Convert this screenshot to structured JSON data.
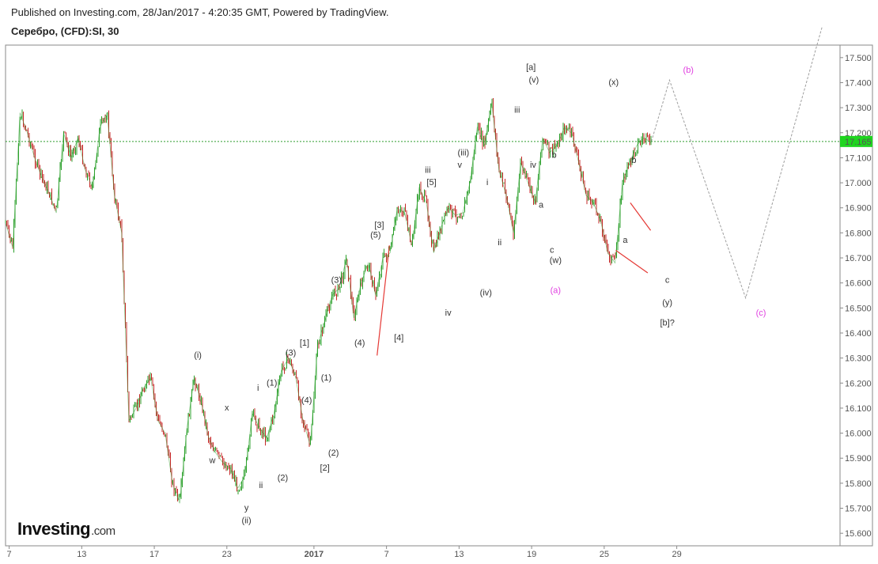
{
  "header": {
    "published": "Published on Investing.com, 28/Jan/2017 - 4:20:35 GMT, Powered by TradingView.",
    "symbol": "Серебро, (CFD):SI, 30"
  },
  "logo": {
    "main": "Investing",
    "domain": ".com"
  },
  "colors": {
    "up": "#2ca02c",
    "down": "#c62828",
    "price_line": "#2e9e2e",
    "price_label_bg": "#1fd51f",
    "projection": "#9e9e9e",
    "wave_label": "#333333",
    "wave_label_alt": "#e040e0",
    "trendline": "#e53935"
  },
  "chart_data": {
    "type": "line",
    "title": "Серебро, (CFD):SI, 30",
    "ylim": [
      15.55,
      17.55
    ],
    "xlim": [
      0,
      115
    ],
    "y_ticks": [
      "17.500",
      "17.400",
      "17.300",
      "17.200",
      "17.100",
      "17.000",
      "16.900",
      "16.800",
      "16.700",
      "16.600",
      "16.500",
      "16.400",
      "16.300",
      "16.200",
      "16.100",
      "16.000",
      "15.900",
      "15.800",
      "15.700",
      "15.600"
    ],
    "x_ticks": [
      {
        "label": "7",
        "x": 0.5
      },
      {
        "label": "13",
        "x": 10.5
      },
      {
        "label": "17",
        "x": 20.5
      },
      {
        "label": "23",
        "x": 30.5
      },
      {
        "label": "2017",
        "x": 42.5,
        "bold": true
      },
      {
        "label": "7",
        "x": 52.5
      },
      {
        "label": "13",
        "x": 62.5
      },
      {
        "label": "19",
        "x": 72.5
      },
      {
        "label": "25",
        "x": 82.5
      },
      {
        "label": "29",
        "x": 92.5
      }
    ],
    "current_price": 17.165,
    "current_price_label": "17.165",
    "series": [
      {
        "name": "",
        "x": [
          0,
          1,
          2,
          3,
          4,
          5,
          6,
          7,
          8,
          9,
          10,
          11,
          12,
          13,
          14,
          15,
          16,
          17,
          18,
          19,
          20,
          21,
          22,
          23,
          24,
          25,
          26,
          27,
          28,
          29,
          30,
          31,
          32,
          33,
          34,
          35,
          36,
          37,
          38,
          39,
          40,
          41,
          42,
          43,
          44,
          45,
          46,
          47,
          48,
          49,
          50,
          51,
          52,
          53,
          54,
          55,
          56,
          57,
          58,
          59,
          60,
          61,
          62,
          63,
          64,
          65,
          66,
          67,
          68,
          69,
          70,
          71,
          72,
          73,
          74,
          75,
          76,
          77,
          78,
          79,
          80,
          81,
          82,
          83,
          84,
          85,
          86,
          87,
          88,
          89
        ],
        "y": [
          16.84,
          16.74,
          17.28,
          17.2,
          17.1,
          17.02,
          16.96,
          16.88,
          17.2,
          17.1,
          17.18,
          17.05,
          16.98,
          17.22,
          17.28,
          16.95,
          16.8,
          16.05,
          16.1,
          16.18,
          16.22,
          16.05,
          16.0,
          15.8,
          15.72,
          16.02,
          16.22,
          16.12,
          15.98,
          15.92,
          15.88,
          15.86,
          15.78,
          15.83,
          16.08,
          16.02,
          15.98,
          16.08,
          16.25,
          16.3,
          16.22,
          16.05,
          15.95,
          16.35,
          16.45,
          16.55,
          16.58,
          16.7,
          16.46,
          16.6,
          16.68,
          16.55,
          16.7,
          16.72,
          16.9,
          16.88,
          16.75,
          16.98,
          16.92,
          16.72,
          16.82,
          16.9,
          16.87,
          16.88,
          17.0,
          17.22,
          17.15,
          17.32,
          17.05,
          16.95,
          16.8,
          17.08,
          17.0,
          16.92,
          17.18,
          17.12,
          17.15,
          17.22,
          17.2,
          17.08,
          16.95,
          16.92,
          16.85,
          16.72,
          16.68,
          17.0,
          17.08,
          17.15,
          17.18,
          17.16
        ],
        "color": "#2ca02c"
      },
      {
        "name": "",
        "x": [
          89,
          91.5,
          102,
          112.5
        ],
        "y": [
          17.165,
          17.41,
          16.54,
          17.62
        ],
        "style": "dashed",
        "color": "#9e9e9e"
      }
    ],
    "trendlines": [
      {
        "x": [
          51.2,
          52.9
        ],
        "y": [
          16.31,
          16.75
        ]
      },
      {
        "x": [
          86.1,
          88.9
        ],
        "y": [
          16.92,
          16.81
        ]
      },
      {
        "x": [
          84.1,
          88.5
        ],
        "y": [
          16.73,
          16.64
        ]
      }
    ],
    "annotations": [
      {
        "text": "(i)",
        "x": 26.5,
        "y": 16.3
      },
      {
        "text": "x",
        "x": 30.5,
        "y": 16.09
      },
      {
        "text": "w",
        "x": 28.5,
        "y": 15.88
      },
      {
        "text": "ii",
        "x": 35.2,
        "y": 15.78
      },
      {
        "text": "y",
        "x": 33.2,
        "y": 15.69
      },
      {
        "text": "(ii)",
        "x": 33.2,
        "y": 15.64
      },
      {
        "text": "i",
        "x": 34.8,
        "y": 16.17
      },
      {
        "text": "(1)",
        "x": 36.7,
        "y": 16.19
      },
      {
        "text": "(2)",
        "x": 38.2,
        "y": 15.81
      },
      {
        "text": "(3)",
        "x": 39.3,
        "y": 16.31
      },
      {
        "text": "(4)",
        "x": 41.5,
        "y": 16.12
      },
      {
        "text": "[1]",
        "x": 41.2,
        "y": 16.35
      },
      {
        "text": "(1)",
        "x": 44.2,
        "y": 16.21
      },
      {
        "text": "(2)",
        "x": 45.2,
        "y": 15.91
      },
      {
        "text": "[2]",
        "x": 44.0,
        "y": 15.85
      },
      {
        "text": "(3)",
        "x": 45.6,
        "y": 16.6
      },
      {
        "text": "(4)",
        "x": 48.8,
        "y": 16.35
      },
      {
        "text": "(5)",
        "x": 51.0,
        "y": 16.78
      },
      {
        "text": "[3]",
        "x": 51.5,
        "y": 16.82
      },
      {
        "text": "[4]",
        "x": 54.2,
        "y": 16.37
      },
      {
        "text": "iii",
        "x": 58.2,
        "y": 17.04
      },
      {
        "text": "[5]",
        "x": 58.7,
        "y": 16.99
      },
      {
        "text": "v",
        "x": 62.6,
        "y": 17.06
      },
      {
        "text": "(iii)",
        "x": 63.1,
        "y": 17.11
      },
      {
        "text": "iv",
        "x": 61.0,
        "y": 16.47
      },
      {
        "text": "i",
        "x": 66.4,
        "y": 16.99
      },
      {
        "text": "ii",
        "x": 68.1,
        "y": 16.75
      },
      {
        "text": "(iv)",
        "x": 66.2,
        "y": 16.55
      },
      {
        "text": "iii",
        "x": 70.5,
        "y": 17.28
      },
      {
        "text": "[a]",
        "x": 72.4,
        "y": 17.45
      },
      {
        "text": "(v)",
        "x": 72.8,
        "y": 17.4
      },
      {
        "text": "iv",
        "x": 72.7,
        "y": 17.06
      },
      {
        "text": "b",
        "x": 75.6,
        "y": 17.1
      },
      {
        "text": "a",
        "x": 73.8,
        "y": 16.9
      },
      {
        "text": "c",
        "x": 75.3,
        "y": 16.72
      },
      {
        "text": "(w)",
        "x": 75.8,
        "y": 16.68
      },
      {
        "text": "(a)",
        "x": 75.8,
        "y": 16.56,
        "alt": true
      },
      {
        "text": "(x)",
        "x": 83.8,
        "y": 17.39
      },
      {
        "text": "b",
        "x": 86.6,
        "y": 17.08
      },
      {
        "text": "a",
        "x": 85.4,
        "y": 16.76
      },
      {
        "text": "c",
        "x": 91.2,
        "y": 16.6
      },
      {
        "text": "(y)",
        "x": 91.2,
        "y": 16.51
      },
      {
        "text": "[b]?",
        "x": 91.2,
        "y": 16.43
      },
      {
        "text": "(b)",
        "x": 94.1,
        "y": 17.44,
        "alt": true
      },
      {
        "text": "(c)",
        "x": 104.1,
        "y": 16.47,
        "alt": true
      }
    ]
  }
}
